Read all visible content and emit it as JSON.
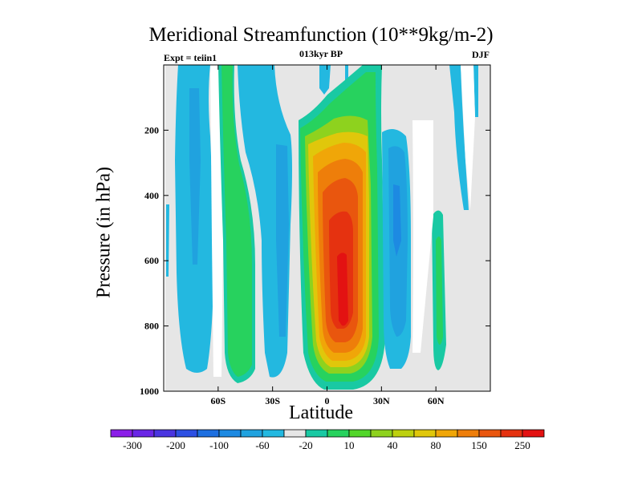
{
  "chart_data": {
    "type": "heatmap",
    "title": "Meridional Streamfunction (10**9kg/m-2)",
    "subtitle": "013kyr BP",
    "left_label": "Expt = teiin1",
    "right_label": "DJF",
    "xlabel": "Latitude",
    "ylabel": "Pressure (in hPa)",
    "xlim": [
      -90,
      90
    ],
    "ylim": [
      1000,
      0
    ],
    "x_ticks": [
      {
        "value": -60,
        "label": "60S"
      },
      {
        "value": -30,
        "label": "30S"
      },
      {
        "value": 0,
        "label": "0"
      },
      {
        "value": 30,
        "label": "30N"
      },
      {
        "value": 60,
        "label": "60N"
      }
    ],
    "y_ticks": [
      {
        "value": 200,
        "label": "200"
      },
      {
        "value": 400,
        "label": "400"
      },
      {
        "value": 600,
        "label": "600"
      },
      {
        "value": 800,
        "label": "800"
      },
      {
        "value": 1000,
        "label": "1000"
      }
    ],
    "colorbar": {
      "orientation": "horizontal",
      "labels": [
        "-300",
        "-200",
        "-100",
        "-60",
        "-20",
        "10",
        "40",
        "80",
        "150",
        "250"
      ],
      "colors": [
        "#8b1ee8",
        "#6a26e6",
        "#4a35e0",
        "#2d50e3",
        "#1d6fe0",
        "#1d8ae2",
        "#20a2df",
        "#23b8e0",
        "#e6e6e6",
        "#19c9a3",
        "#27d25e",
        "#52d62a",
        "#8ed21e",
        "#bdd00f",
        "#e0c70b",
        "#f0a608",
        "#ee7e0a",
        "#e9560e",
        "#e53210",
        "#e31212"
      ]
    },
    "contour_fields": [
      {
        "name": "band-1",
        "lat_range": [
          -80,
          -65
        ],
        "p_range": [
          20,
          960
        ],
        "value": -20
      },
      {
        "name": "band-2",
        "lat_range": [
          -55,
          -40
        ],
        "p_range": [
          10,
          970
        ],
        "value": 40
      },
      {
        "name": "band-3",
        "lat_range": [
          -40,
          -20
        ],
        "p_range": [
          30,
          990
        ],
        "value": -20
      },
      {
        "name": "band-4",
        "lat_range": [
          -5,
          30
        ],
        "p_range": [
          10,
          990
        ],
        "value": 250
      },
      {
        "name": "band-5",
        "lat_range": [
          30,
          50
        ],
        "p_range": [
          150,
          940
        ],
        "value": -60
      },
      {
        "name": "band-6",
        "lat_range": [
          60,
          65
        ],
        "p_range": [
          550,
          940
        ],
        "value": 40
      }
    ]
  }
}
